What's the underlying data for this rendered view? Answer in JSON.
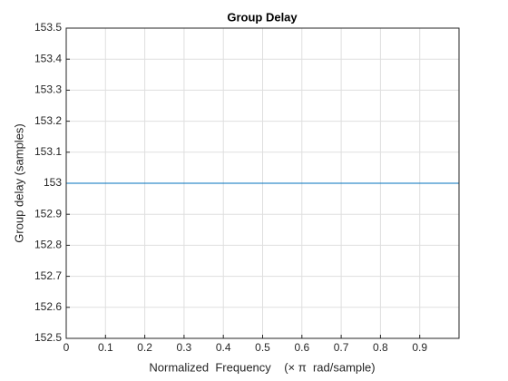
{
  "chart_data": {
    "type": "line",
    "title": "Group Delay",
    "x_label": "Normalized  Frequency    (× π  rad/sample)",
    "y_label": "Group delay (samples)",
    "x": [
      0,
      1
    ],
    "series": [
      {
        "name": "Group delay",
        "color": "#0072bd",
        "values": [
          153,
          153
        ]
      }
    ],
    "xlim": [
      0,
      1
    ],
    "xticks": [
      0,
      0.1,
      0.2,
      0.3,
      0.4,
      0.5,
      0.6,
      0.7,
      0.8,
      0.9
    ],
    "ylim": [
      152.5,
      153.5
    ],
    "yticks": [
      152.5,
      152.6,
      152.7,
      152.8,
      152.9,
      153,
      153.1,
      153.2,
      153.3,
      153.4,
      153.5
    ],
    "grid": true
  }
}
